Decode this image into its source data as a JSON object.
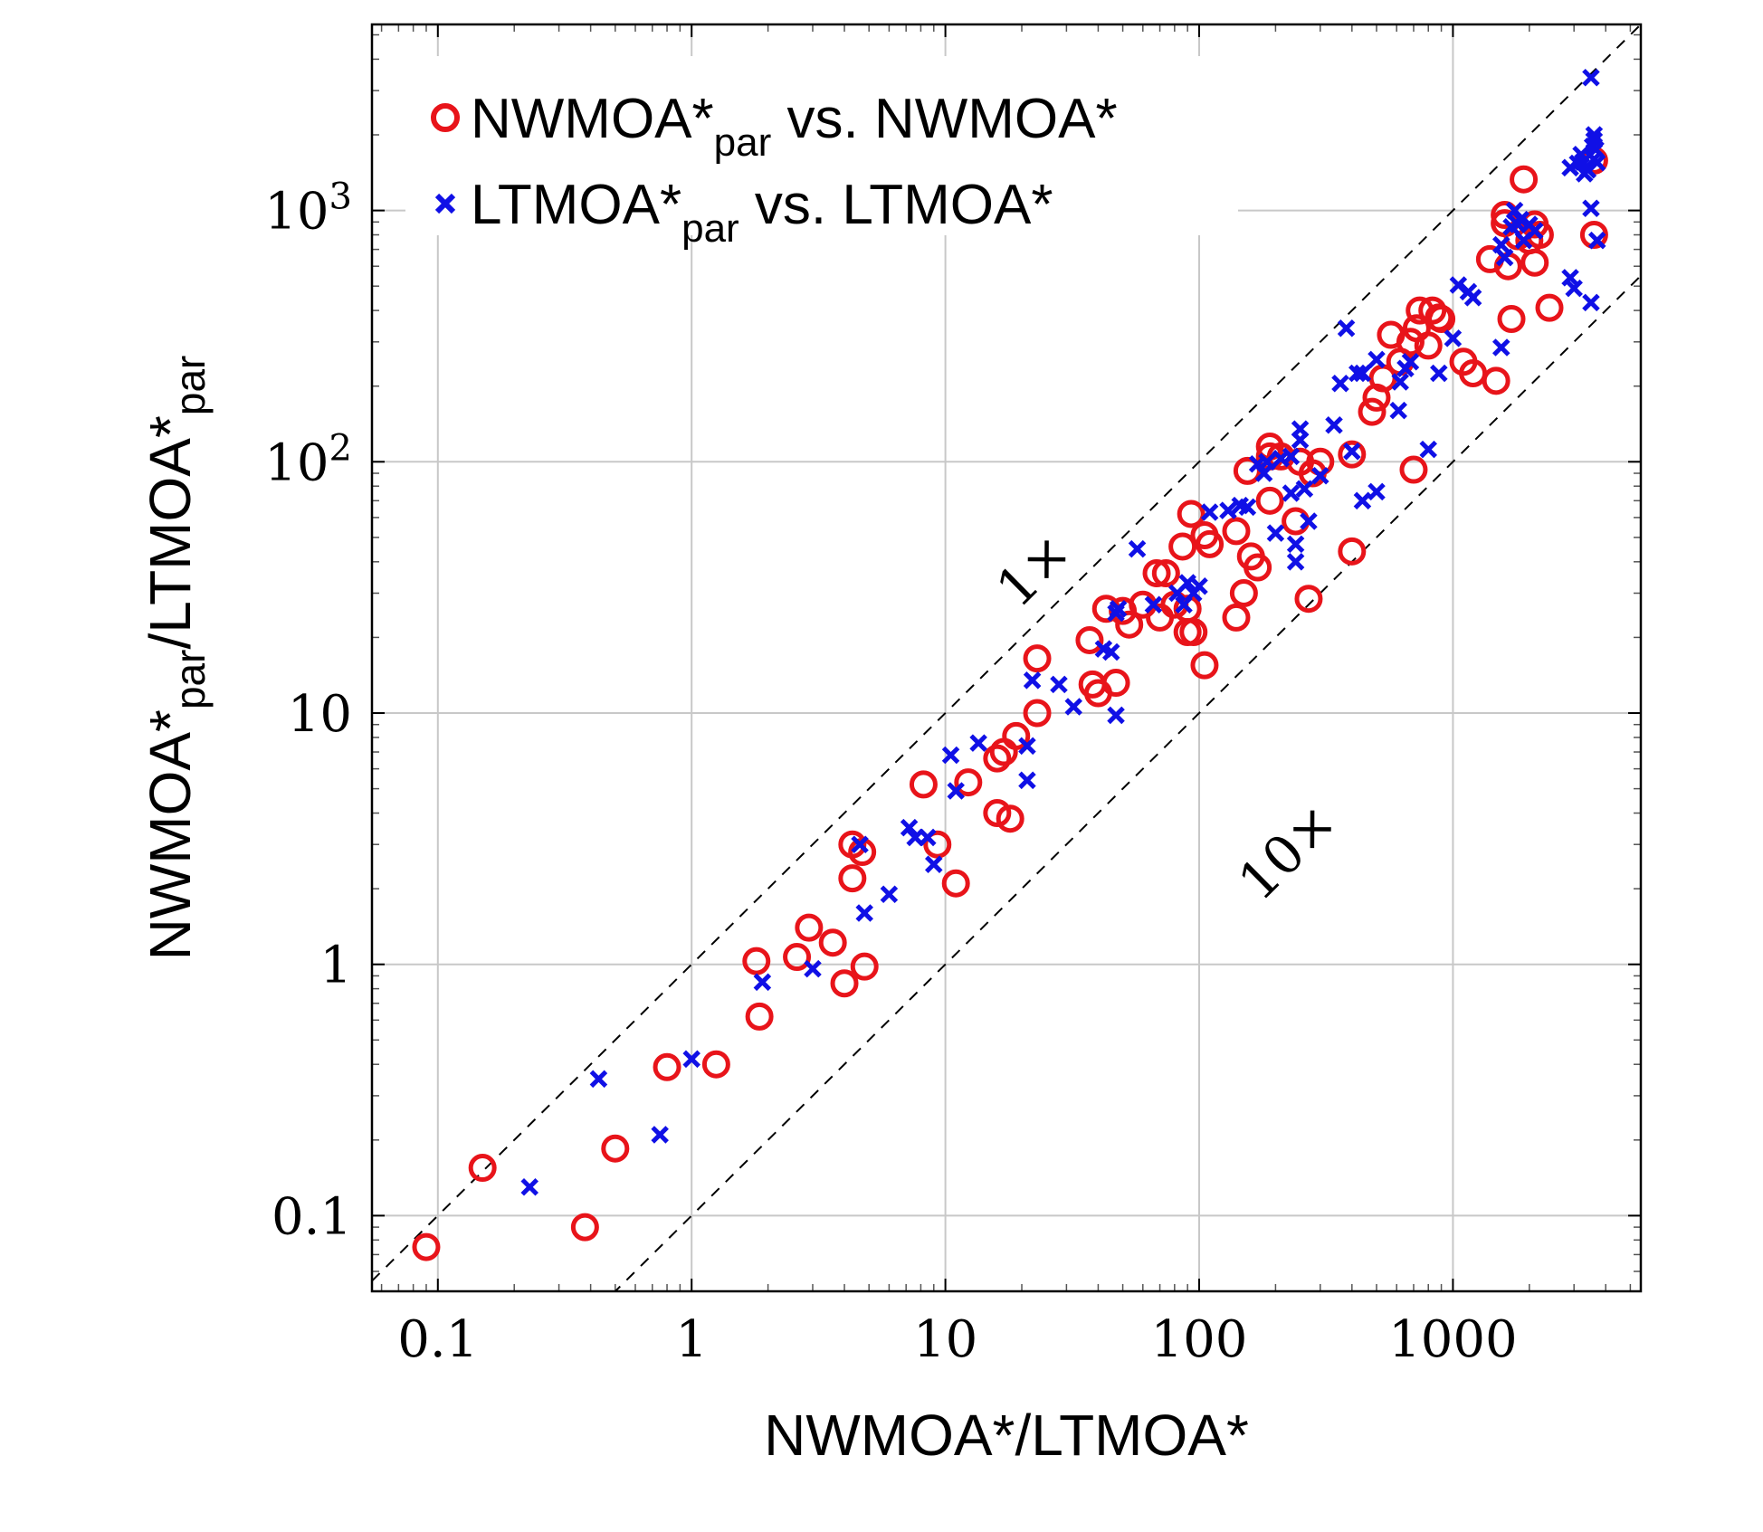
{
  "chart_data": {
    "type": "scatter",
    "xlabel": "NWMOA*/LTMOA*",
    "ylabel": {
      "main": "NWMOA*",
      "sub1": "par",
      "mid": "/LTMOA*",
      "sub2": "par"
    },
    "x_scale": "log",
    "y_scale": "log",
    "xlim": [
      0.055,
      5500
    ],
    "ylim": [
      0.05,
      5500
    ],
    "x_ticks": [
      {
        "value": 0.1,
        "label": "0.1"
      },
      {
        "value": 1,
        "label": "1"
      },
      {
        "value": 10,
        "label": "10"
      },
      {
        "value": 100,
        "label": "100"
      },
      {
        "value": 1000,
        "label": "1000"
      }
    ],
    "y_ticks": [
      {
        "value": 0.1,
        "label": "0.1"
      },
      {
        "value": 1,
        "label": "1"
      },
      {
        "value": 10,
        "label": "10"
      },
      {
        "value": 100,
        "base": "10",
        "exp": "2"
      },
      {
        "value": 1000,
        "base": "10",
        "exp": "3"
      }
    ],
    "grid": true,
    "legend_position": "top-left",
    "reference_lines": [
      {
        "factor": 1,
        "label": "1×"
      },
      {
        "factor": 10,
        "label": "10×"
      }
    ],
    "colors": {
      "nwmoa": "#e8141a",
      "ltmoa": "#1010e6",
      "grid": "#c8c8c8",
      "refline": "#000000"
    },
    "series": [
      {
        "name": {
          "main": "NWMOA*",
          "sub": "par",
          "rest": " vs. NWMOA*"
        },
        "marker": "circle",
        "points": [
          [
            0.09,
            0.075
          ],
          [
            0.15,
            0.155
          ],
          [
            0.38,
            0.09
          ],
          [
            0.5,
            0.185
          ],
          [
            0.8,
            0.39
          ],
          [
            1.25,
            0.4
          ],
          [
            1.85,
            0.62
          ],
          [
            1.8,
            1.03
          ],
          [
            2.6,
            1.07
          ],
          [
            2.9,
            1.4
          ],
          [
            3.6,
            1.22
          ],
          [
            4.0,
            0.84
          ],
          [
            4.8,
            0.98
          ],
          [
            4.3,
            3.0
          ],
          [
            4.3,
            2.2
          ],
          [
            4.7,
            2.8
          ],
          [
            8.2,
            5.2
          ],
          [
            9.3,
            3.0
          ],
          [
            11.0,
            2.1
          ],
          [
            12.3,
            5.3
          ],
          [
            16,
            6.6
          ],
          [
            17,
            7.0
          ],
          [
            19,
            8.1
          ],
          [
            16,
            4.0
          ],
          [
            18,
            3.8
          ],
          [
            23,
            16.5
          ],
          [
            23,
            10
          ],
          [
            37,
            19.5
          ],
          [
            38,
            13.0
          ],
          [
            40,
            12.0
          ],
          [
            43,
            26
          ],
          [
            47,
            13.2
          ],
          [
            50,
            25.5
          ],
          [
            53,
            22.5
          ],
          [
            60,
            27
          ],
          [
            68,
            36
          ],
          [
            70,
            24
          ],
          [
            74,
            36
          ],
          [
            80,
            27
          ],
          [
            86,
            46
          ],
          [
            90,
            26
          ],
          [
            93,
            62
          ],
          [
            90,
            21
          ],
          [
            95,
            21
          ],
          [
            105,
            15.5
          ],
          [
            105,
            51
          ],
          [
            110,
            47
          ],
          [
            140,
            53
          ],
          [
            140,
            24
          ],
          [
            150,
            30
          ],
          [
            160,
            42
          ],
          [
            155,
            92
          ],
          [
            170,
            38
          ],
          [
            190,
            105
          ],
          [
            190,
            70
          ],
          [
            190,
            115
          ],
          [
            210,
            105
          ],
          [
            240,
            58
          ],
          [
            250,
            100
          ],
          [
            270,
            28.5
          ],
          [
            280,
            90
          ],
          [
            300,
            100
          ],
          [
            400,
            107
          ],
          [
            400,
            44
          ],
          [
            480,
            158
          ],
          [
            500,
            180
          ],
          [
            530,
            215
          ],
          [
            570,
            320
          ],
          [
            620,
            250
          ],
          [
            680,
            300
          ],
          [
            700,
            93
          ],
          [
            720,
            340
          ],
          [
            740,
            400
          ],
          [
            800,
            290
          ],
          [
            830,
            400
          ],
          [
            880,
            375
          ],
          [
            900,
            370
          ],
          [
            1100,
            250
          ],
          [
            1200,
            225
          ],
          [
            1400,
            640
          ],
          [
            1480,
            210
          ],
          [
            1600,
            890
          ],
          [
            1600,
            960
          ],
          [
            1650,
            600
          ],
          [
            1700,
            370
          ],
          [
            1800,
            790
          ],
          [
            1900,
            1330
          ],
          [
            2000,
            760
          ],
          [
            2100,
            620
          ],
          [
            2100,
            880
          ],
          [
            2200,
            800
          ],
          [
            2400,
            410
          ],
          [
            3600,
            1580
          ],
          [
            3600,
            800
          ]
        ]
      },
      {
        "name": {
          "main": "LTMOA*",
          "sub": "par",
          "rest": " vs. LTMOA*"
        },
        "marker": "cross",
        "points": [
          [
            0.23,
            0.13
          ],
          [
            0.43,
            0.35
          ],
          [
            0.75,
            0.21
          ],
          [
            1.0,
            0.42
          ],
          [
            1.9,
            0.85
          ],
          [
            3.0,
            0.96
          ],
          [
            4.6,
            3.0
          ],
          [
            4.8,
            1.6
          ],
          [
            6.0,
            1.9
          ],
          [
            7.2,
            3.5
          ],
          [
            7.6,
            3.2
          ],
          [
            8.5,
            3.2
          ],
          [
            9.0,
            2.5
          ],
          [
            10.5,
            6.8
          ],
          [
            11,
            4.9
          ],
          [
            13.5,
            7.6
          ],
          [
            21,
            5.4
          ],
          [
            21,
            7.4
          ],
          [
            22,
            13.5
          ],
          [
            28,
            13.0
          ],
          [
            32,
            10.6
          ],
          [
            42,
            18
          ],
          [
            45,
            17.5
          ],
          [
            47,
            9.8
          ],
          [
            47,
            25
          ],
          [
            48,
            26
          ],
          [
            57,
            45
          ],
          [
            66,
            27
          ],
          [
            82,
            30
          ],
          [
            87,
            27
          ],
          [
            90,
            33
          ],
          [
            95,
            30
          ],
          [
            100,
            32
          ],
          [
            110,
            63
          ],
          [
            130,
            64
          ],
          [
            145,
            67
          ],
          [
            155,
            66
          ],
          [
            170,
            98
          ],
          [
            180,
            90
          ],
          [
            185,
            100
          ],
          [
            200,
            52
          ],
          [
            210,
            103
          ],
          [
            230,
            75
          ],
          [
            230,
            105
          ],
          [
            240,
            47
          ],
          [
            240,
            40
          ],
          [
            250,
            122
          ],
          [
            250,
            135
          ],
          [
            260,
            78
          ],
          [
            270,
            58
          ],
          [
            300,
            88
          ],
          [
            340,
            140
          ],
          [
            360,
            205
          ],
          [
            380,
            340
          ],
          [
            400,
            110
          ],
          [
            420,
            225
          ],
          [
            440,
            70
          ],
          [
            440,
            225
          ],
          [
            500,
            76
          ],
          [
            500,
            255
          ],
          [
            610,
            160
          ],
          [
            620,
            208
          ],
          [
            650,
            235
          ],
          [
            680,
            250
          ],
          [
            800,
            112
          ],
          [
            880,
            225
          ],
          [
            1000,
            310
          ],
          [
            1050,
            505
          ],
          [
            1150,
            475
          ],
          [
            1200,
            450
          ],
          [
            1550,
            285
          ],
          [
            1550,
            730
          ],
          [
            1600,
            650
          ],
          [
            1700,
            860
          ],
          [
            1750,
            1000
          ],
          [
            1800,
            880
          ],
          [
            1850,
            920
          ],
          [
            1900,
            760
          ],
          [
            2000,
            880
          ],
          [
            2100,
            830
          ],
          [
            2900,
            1480
          ],
          [
            2900,
            540
          ],
          [
            3000,
            490
          ],
          [
            3100,
            1540
          ],
          [
            3200,
            1670
          ],
          [
            3250,
            1560
          ],
          [
            3300,
            1400
          ],
          [
            3400,
            1450
          ],
          [
            3500,
            430
          ],
          [
            3500,
            1020
          ],
          [
            3500,
            3380
          ],
          [
            3550,
            1800
          ],
          [
            3600,
            1600
          ],
          [
            3600,
            1900
          ],
          [
            3600,
            2000
          ],
          [
            3650,
            1750
          ],
          [
            3700,
            760
          ],
          [
            3700,
            1550
          ]
        ]
      }
    ]
  }
}
